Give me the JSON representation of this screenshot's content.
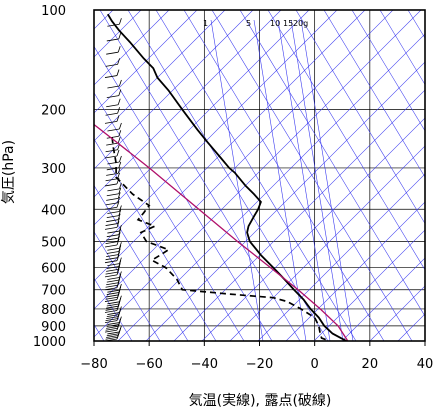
{
  "chart_data": {
    "type": "line",
    "chart_kind": "skew-T log-P sounding",
    "xlabel": "気温(実線), 露点(破線)",
    "ylabel": "気圧(hPa)",
    "x_scale": "linear",
    "y_scale": "log",
    "y_inverted": true,
    "xlim": [
      -80,
      40
    ],
    "ylim": [
      1000,
      100
    ],
    "x_ticks": [
      -80,
      -60,
      -40,
      -20,
      0,
      20,
      40
    ],
    "x_tick_labels": [
      "−80",
      "−60",
      "−40",
      "−20",
      "0",
      "20",
      "40"
    ],
    "y_ticks": [
      100,
      200,
      300,
      400,
      500,
      600,
      700,
      800,
      900,
      1000
    ],
    "y_tick_labels": [
      "100",
      "200",
      "300",
      "400",
      "500",
      "600",
      "700",
      "800",
      "900",
      "1000"
    ],
    "mixing_ratio_labels": [
      "1",
      "5",
      "10",
      "15",
      "20g"
    ],
    "grid": true,
    "colors": {
      "background_lines": "#3b3bf0",
      "parcel_line": "#b0106a",
      "series": "#000000",
      "frame": "#000000"
    },
    "series": [
      {
        "line_style": "solid",
        "points": [
          {
            "p": 1000,
            "t": 11.5
          },
          {
            "p": 980,
            "t": 9.5
          },
          {
            "p": 950,
            "t": 6.5
          },
          {
            "p": 925,
            "t": 5.0
          },
          {
            "p": 900,
            "t": 3.5
          },
          {
            "p": 850,
            "t": 1.5
          },
          {
            "p": 800,
            "t": -1.5
          },
          {
            "p": 750,
            "t": -4.0
          },
          {
            "p": 700,
            "t": -7.5
          },
          {
            "p": 650,
            "t": -11.0
          },
          {
            "p": 600,
            "t": -15.0
          },
          {
            "p": 550,
            "t": -19.5
          },
          {
            "p": 500,
            "t": -23.5
          },
          {
            "p": 470,
            "t": -24.5
          },
          {
            "p": 450,
            "t": -24.0
          },
          {
            "p": 420,
            "t": -22.0
          },
          {
            "p": 400,
            "t": -20.5
          },
          {
            "p": 380,
            "t": -19.5
          },
          {
            "p": 360,
            "t": -22.0
          },
          {
            "p": 340,
            "t": -25.0
          },
          {
            "p": 310,
            "t": -29.0
          },
          {
            "p": 300,
            "t": -31.0
          },
          {
            "p": 280,
            "t": -34.0
          },
          {
            "p": 250,
            "t": -39.0
          },
          {
            "p": 230,
            "t": -42.5
          },
          {
            "p": 200,
            "t": -48.0
          },
          {
            "p": 175,
            "t": -53.0
          },
          {
            "p": 160,
            "t": -57.0
          },
          {
            "p": 150,
            "t": -58.5
          },
          {
            "p": 140,
            "t": -62.0
          },
          {
            "p": 125,
            "t": -67.0
          },
          {
            "p": 115,
            "t": -71.0
          },
          {
            "p": 108,
            "t": -73.5
          },
          {
            "p": 103,
            "t": -75.0
          }
        ]
      },
      {
        "line_style": "dashed",
        "points": [
          {
            "p": 990,
            "t": 4.0
          },
          {
            "p": 980,
            "t": 2.5
          },
          {
            "p": 950,
            "t": 2.0
          },
          {
            "p": 900,
            "t": 1.5
          },
          {
            "p": 850,
            "t": 0.0
          },
          {
            "p": 800,
            "t": -5.0
          },
          {
            "p": 760,
            "t": -10.0
          },
          {
            "p": 740,
            "t": -15.0
          },
          {
            "p": 720,
            "t": -32.0
          },
          {
            "p": 700,
            "t": -48.0
          },
          {
            "p": 650,
            "t": -50.0
          },
          {
            "p": 600,
            "t": -54.0
          },
          {
            "p": 570,
            "t": -59.0
          },
          {
            "p": 550,
            "t": -56.0
          },
          {
            "p": 530,
            "t": -53.0
          },
          {
            "p": 500,
            "t": -61.0
          },
          {
            "p": 470,
            "t": -63.0
          },
          {
            "p": 450,
            "t": -58.0
          },
          {
            "p": 430,
            "t": -64.0
          },
          {
            "p": 410,
            "t": -62.0
          },
          {
            "p": 390,
            "t": -60.0
          },
          {
            "p": 360,
            "t": -66.0
          },
          {
            "p": 320,
            "t": -72.0
          },
          {
            "p": 290,
            "t": -72.0
          },
          {
            "p": 260,
            "t": -73.0
          },
          {
            "p": 240,
            "t": -73.5
          }
        ]
      },
      {
        "line_style": "solid-thin",
        "points": [
          {
            "p": 1000,
            "t": 12.0
          },
          {
            "p": 900,
            "t": 8.5
          },
          {
            "p": 800,
            "t": 2.0
          },
          {
            "p": 700,
            "t": -6.0
          },
          {
            "p": 600,
            "t": -16.0
          },
          {
            "p": 500,
            "t": -28.0
          },
          {
            "p": 400,
            "t": -42.0
          },
          {
            "p": 300,
            "t": -60.0
          },
          {
            "p": 250,
            "t": -72.0
          },
          {
            "p": 200,
            "t": -87.0
          }
        ]
      }
    ]
  }
}
